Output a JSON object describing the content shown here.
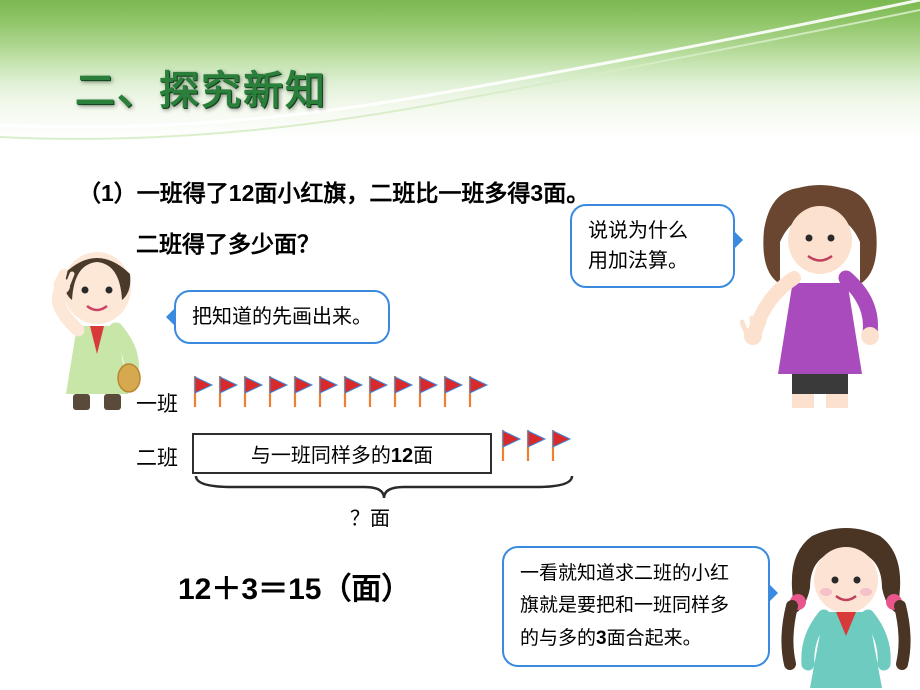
{
  "title": "二、探究新知",
  "problem": {
    "line1_prefix": "（",
    "line1_num": "1",
    "line1_mid": "）一班得了",
    "line1_val1": "12",
    "line1_mid2": "面小红旗，二班比一班多得",
    "line1_val2": "3",
    "line1_suffix": "面。",
    "line2": "二班得了多少面？"
  },
  "bubbles": {
    "boy": "把知道的先画出来。",
    "woman_l1": "说说为什么",
    "woman_l2": "用加法算。",
    "girl_l1_pre": "一看就知道求二班的小红",
    "girl_l2_pre": "旗就是要把和一班同样多",
    "girl_l3_pre": "的与多的",
    "girl_l3_num": "3",
    "girl_l3_suf": "面合起来。"
  },
  "rows": {
    "class1_label": "一班",
    "class2_label": "二班",
    "class2_box_pre": "与一班同样多的",
    "class2_box_num": "12",
    "class2_box_suf": "面",
    "brace_label": "？面"
  },
  "equation": {
    "a": "12",
    "plus": "＋",
    "b": "3",
    "eq": "＝",
    "c": "15",
    "unit": "（面）"
  },
  "colors": {
    "flag_fill": "#d82a2a",
    "flag_pole": "#f08030",
    "flag_border": "#3a8be0",
    "brace_color": "#2a2a2a"
  },
  "flag_counts": {
    "class1": 12,
    "class2_extra": 3
  }
}
